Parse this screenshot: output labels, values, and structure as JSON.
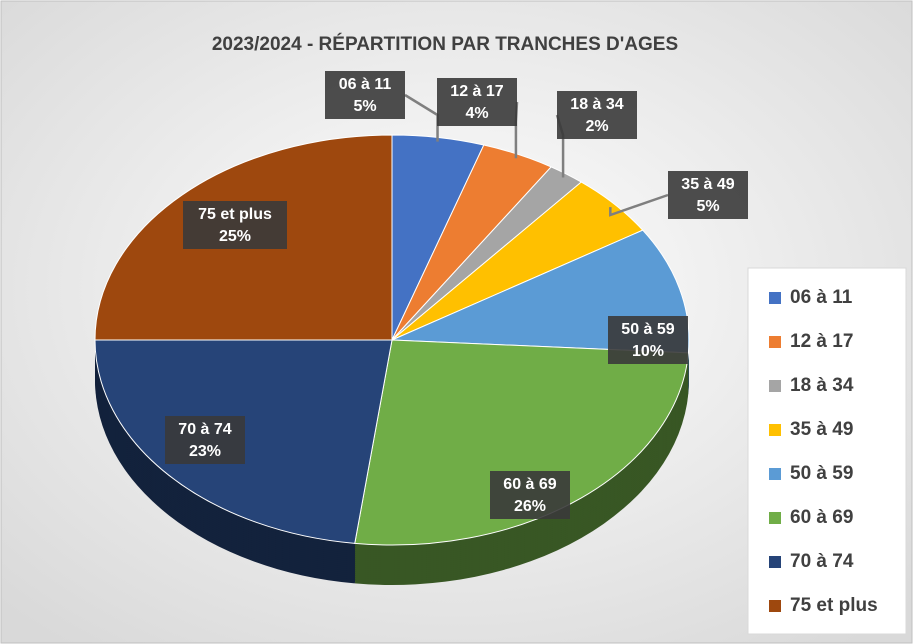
{
  "chart_data": {
    "type": "pie",
    "title": "2023/2024 - RÉPARTITION PAR TRANCHES D'AGES",
    "categories": [
      "06 à 11",
      "12 à 17",
      "18 à 34",
      "35 à 49",
      "50 à 59",
      "60 à 69",
      "70 à 74",
      "75 et plus"
    ],
    "values": [
      5,
      4,
      2,
      5,
      10,
      26,
      23,
      25
    ],
    "value_labels": [
      "5%",
      "4%",
      "2%",
      "5%",
      "10%",
      "26%",
      "23%",
      "25%"
    ],
    "colors": [
      "#4472c4",
      "#ed7d31",
      "#a5a5a5",
      "#ffc000",
      "#5b9bd5",
      "#70ad47",
      "#264478",
      "#9e480e"
    ],
    "legend": "right"
  }
}
